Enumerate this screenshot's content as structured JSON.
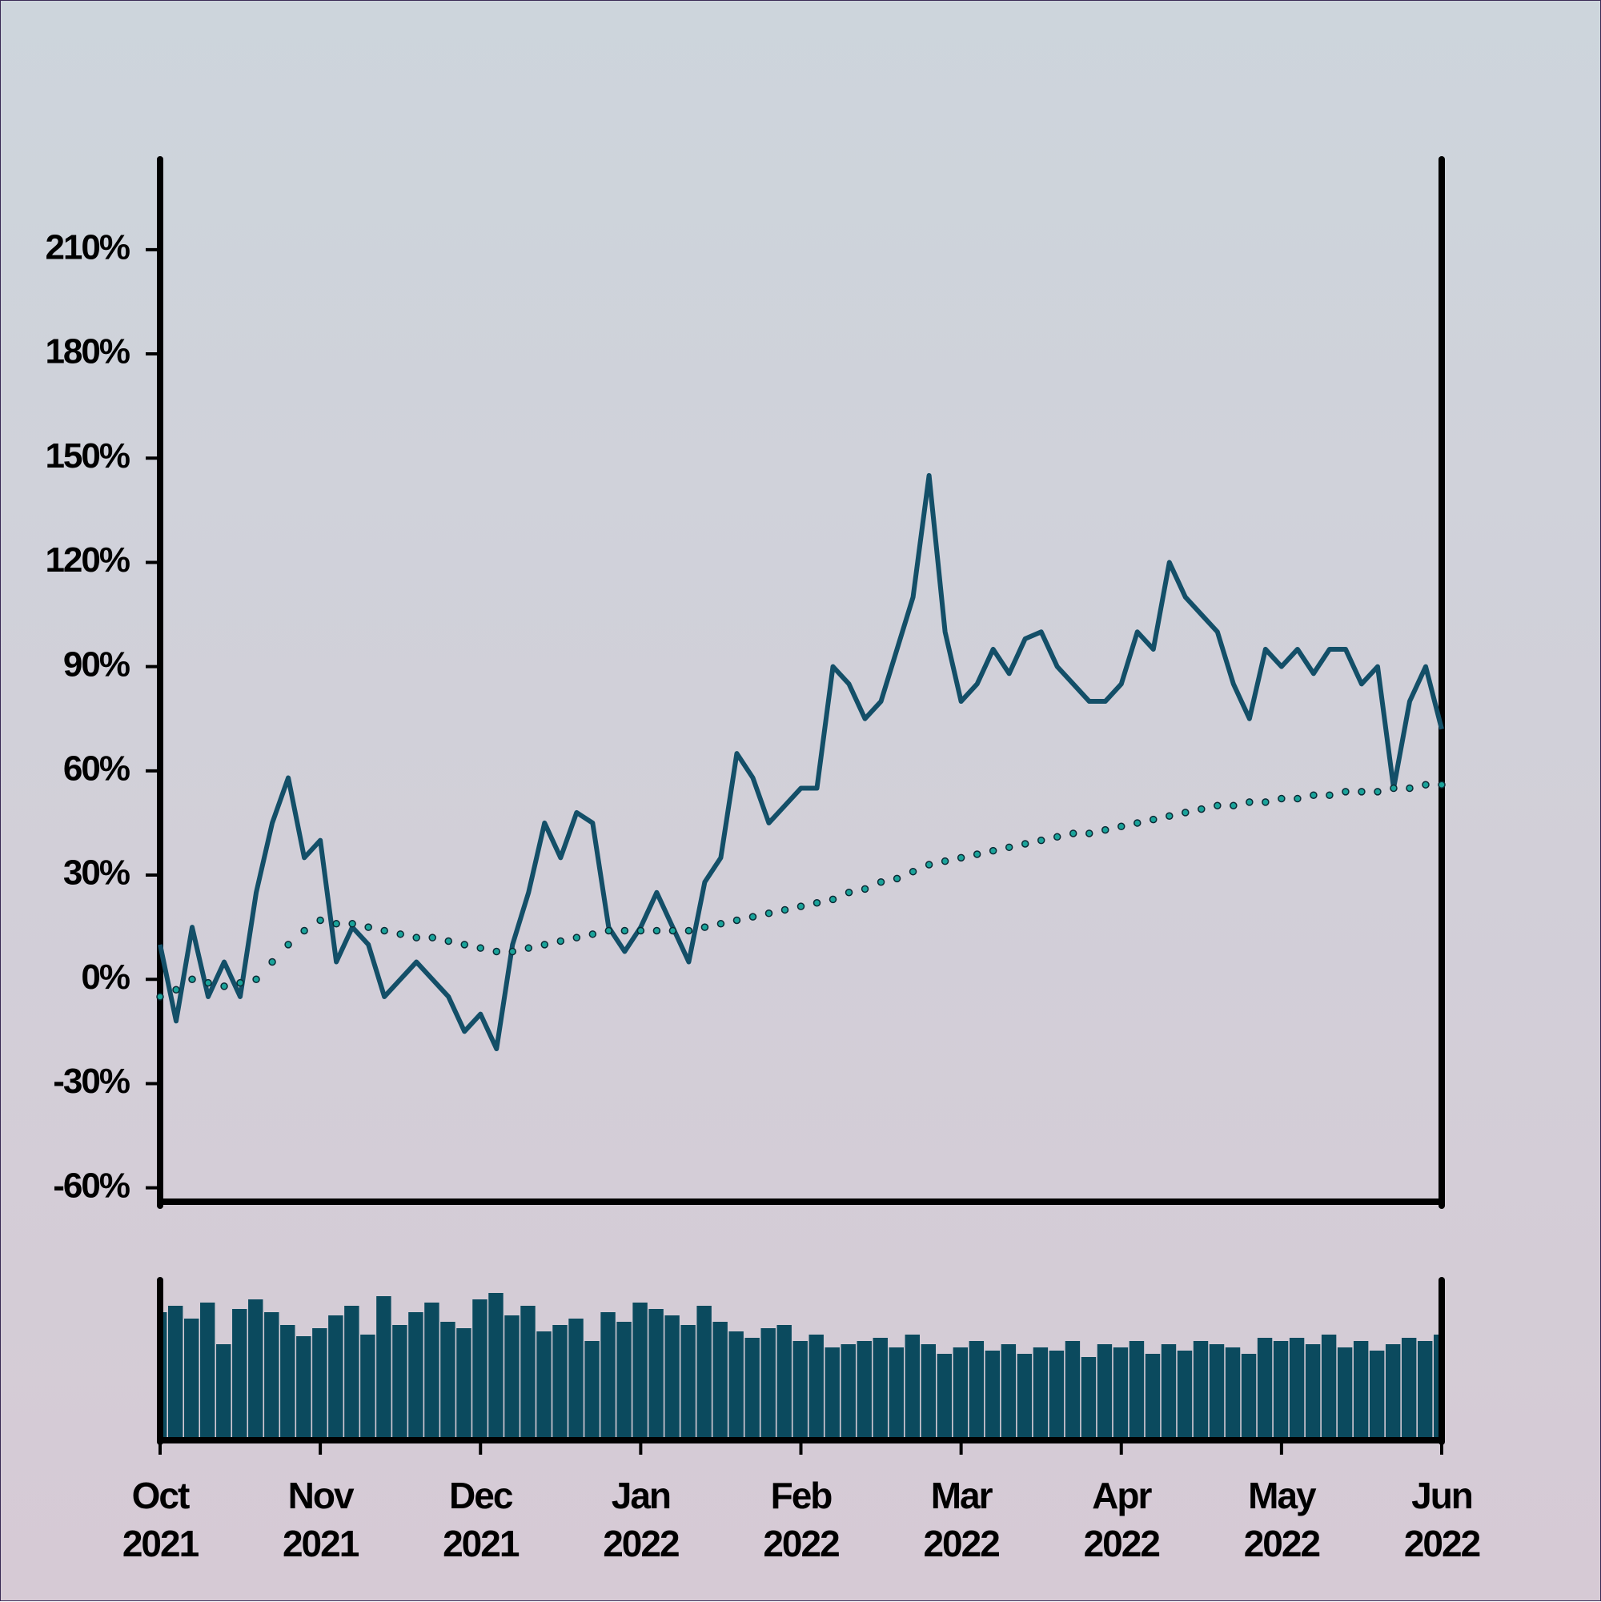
{
  "chart_data": [
    {
      "type": "line",
      "categories": [
        "Oct\n2021",
        null,
        null,
        null,
        null,
        null,
        null,
        null,
        null,
        null,
        "Nov\n2021",
        null,
        null,
        null,
        null,
        null,
        null,
        null,
        null,
        null,
        "Dec\n2021",
        null,
        null,
        null,
        null,
        null,
        null,
        null,
        null,
        null,
        "Jan\n2022",
        null,
        null,
        null,
        null,
        null,
        null,
        null,
        null,
        null,
        "Feb\n2022",
        null,
        null,
        null,
        null,
        null,
        null,
        null,
        null,
        null,
        "Mar\n2022",
        null,
        null,
        null,
        null,
        null,
        null,
        null,
        null,
        null,
        "Apr\n2022",
        null,
        null,
        null,
        null,
        null,
        null,
        null,
        null,
        null,
        "May\n2022",
        null,
        null,
        null,
        null,
        null,
        null,
        null,
        null,
        null,
        "Jun\n2022"
      ],
      "series": [
        {
          "color": "#134f68",
          "values": [
            10,
            -12,
            15,
            -5,
            5,
            -5,
            25,
            45,
            58,
            35,
            40,
            5,
            15,
            10,
            -5,
            0,
            5,
            0,
            -5,
            -15,
            -10,
            -20,
            10,
            25,
            45,
            35,
            48,
            45,
            15,
            8,
            15,
            25,
            15,
            5,
            28,
            35,
            65,
            58,
            45,
            50,
            55,
            55,
            90,
            85,
            75,
            80,
            95,
            110,
            145,
            100,
            80,
            85,
            95,
            88,
            98,
            100,
            90,
            85,
            80,
            80,
            85,
            100,
            95,
            120,
            110,
            105,
            100,
            85,
            75,
            95,
            90,
            95,
            88,
            95,
            95,
            85,
            90,
            55,
            80,
            90,
            72
          ]
        },
        {
          "color": "#1aa39a",
          "values": [
            -5,
            -3,
            0,
            -1,
            -2,
            -1,
            0,
            5,
            10,
            14,
            17,
            16,
            16,
            15,
            14,
            13,
            12,
            12,
            11,
            10,
            9,
            8,
            8,
            9,
            10,
            11,
            12,
            13,
            14,
            14,
            14,
            14,
            14,
            14,
            15,
            16,
            17,
            18,
            19,
            20,
            21,
            22,
            23,
            25,
            26,
            28,
            29,
            31,
            33,
            34,
            35,
            36,
            37,
            38,
            39,
            40,
            41,
            42,
            42,
            43,
            44,
            45,
            46,
            47,
            48,
            49,
            50,
            50,
            51,
            51,
            52,
            52,
            53,
            53,
            54,
            54,
            54,
            55,
            55,
            56,
            56
          ]
        }
      ],
      "ylim": [
        -64,
        236
      ],
      "yticks": [
        {
          "value": -60,
          "label": "-60%"
        },
        {
          "value": -30,
          "label": "-30%"
        },
        {
          "value": 0,
          "label": "0%"
        },
        {
          "value": 30,
          "label": "30%"
        },
        {
          "value": 60,
          "label": "60%"
        },
        {
          "value": 90,
          "label": "90%"
        },
        {
          "value": 120,
          "label": "120%"
        },
        {
          "value": 150,
          "label": "150%"
        },
        {
          "value": 180,
          "label": "180%"
        },
        {
          "value": 210,
          "label": "210%"
        }
      ]
    },
    {
      "type": "bar",
      "color": "#0b4a5e",
      "ylim": [
        0,
        100
      ],
      "values": [
        80,
        84,
        76,
        86,
        60,
        82,
        88,
        80,
        72,
        65,
        70,
        78,
        84,
        66,
        90,
        72,
        80,
        86,
        74,
        70,
        88,
        92,
        78,
        84,
        68,
        72,
        76,
        62,
        80,
        74,
        86,
        82,
        78,
        72,
        84,
        74,
        68,
        64,
        70,
        72,
        62,
        66,
        58,
        60,
        62,
        64,
        58,
        66,
        60,
        54,
        58,
        62,
        56,
        60,
        54,
        58,
        56,
        62,
        52,
        60,
        58,
        62,
        54,
        60,
        56,
        62,
        60,
        58,
        54,
        64,
        62,
        64,
        60,
        66,
        58,
        62,
        56,
        60,
        64,
        62,
        66
      ]
    }
  ]
}
